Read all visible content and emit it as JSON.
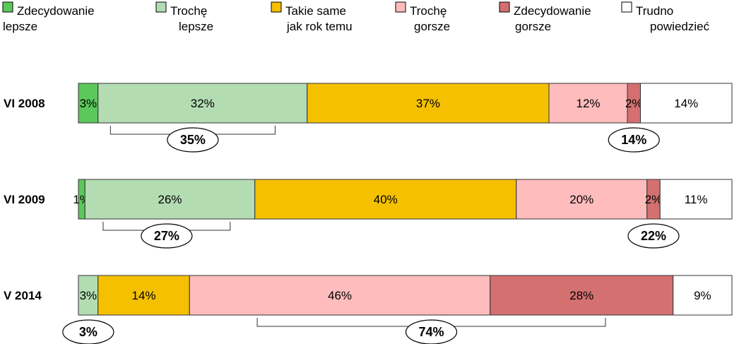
{
  "chart_data": {
    "type": "bar",
    "stacked": true,
    "orientation": "horizontal",
    "legend": {
      "placement": "top",
      "entries": [
        {
          "lines": [
            "Zdecydowanie",
            "lepsze"
          ],
          "color": "#5cc85c"
        },
        {
          "lines": [
            "Trochę",
            "lepsze"
          ],
          "color": "#b3dcb3"
        },
        {
          "lines": [
            "Takie same",
            "jak rok temu"
          ],
          "color": "#f5c000"
        },
        {
          "lines": [
            "Trochę",
            "gorsze"
          ],
          "color": "#ffbcbc"
        },
        {
          "lines": [
            "Zdecydowanie",
            "gorsze"
          ],
          "color": "#d47070"
        },
        {
          "lines": [
            "Trudno",
            "powiedzieć"
          ],
          "color": "#ffffff"
        }
      ]
    },
    "rows": [
      {
        "label": "VI 2008",
        "segments": [
          {
            "value": 3,
            "label": "3%",
            "color": "#5cc85c"
          },
          {
            "value": 32,
            "label": "32%",
            "color": "#b3dcb3"
          },
          {
            "value": 37,
            "label": "37%",
            "color": "#f5c000"
          },
          {
            "value": 12,
            "label": "12%",
            "color": "#ffbcbc"
          },
          {
            "value": 2,
            "label": "2%",
            "color": "#d47070"
          },
          {
            "value": 14,
            "label": "14%",
            "color": "#ffffff"
          }
        ],
        "sums": [
          {
            "label": "35%",
            "from": 0,
            "to": 2
          },
          {
            "label": "14%",
            "from": 4,
            "to": 5
          }
        ]
      },
      {
        "label": "VI 2009",
        "segments": [
          {
            "value": 1,
            "label": "1%",
            "color": "#5cc85c"
          },
          {
            "value": 26,
            "label": "26%",
            "color": "#b3dcb3"
          },
          {
            "value": 40,
            "label": "40%",
            "color": "#f5c000"
          },
          {
            "value": 20,
            "label": "20%",
            "color": "#ffbcbc"
          },
          {
            "value": 2,
            "label": "2%",
            "color": "#d47070"
          },
          {
            "value": 11,
            "label": "11%",
            "color": "#ffffff"
          }
        ],
        "sums": [
          {
            "label": "27%",
            "from": 0,
            "to": 2
          },
          {
            "label": "22%",
            "from": 4,
            "to": 5
          }
        ]
      },
      {
        "label": "V 2014",
        "segments": [
          {
            "value": 3,
            "label": "3%",
            "color": "#b3dcb3"
          },
          {
            "value": 14,
            "label": "14%",
            "color": "#f5c000"
          },
          {
            "value": 46,
            "label": "46%",
            "color": "#ffbcbc"
          },
          {
            "value": 28,
            "label": "28%",
            "color": "#d47070"
          },
          {
            "value": 9,
            "label": "9%",
            "color": "#ffffff"
          }
        ],
        "sums": [
          {
            "label": "3%",
            "from": 0,
            "to": 1
          },
          {
            "label": "74%",
            "from": 2,
            "to": 4
          }
        ]
      }
    ]
  }
}
